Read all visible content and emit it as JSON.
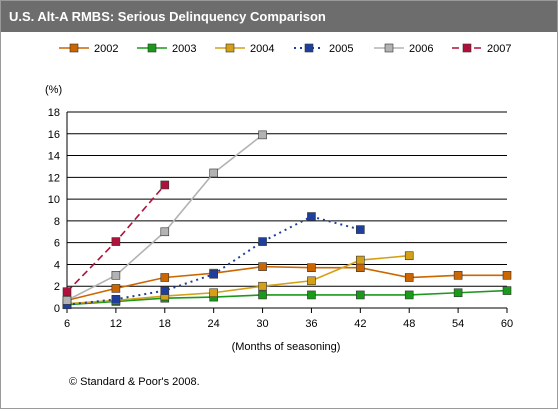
{
  "title": "U.S. Alt-A RMBS: Serious Delinquency Comparison",
  "footer": "© Standard & Poor's 2008.",
  "chart_data": {
    "type": "line",
    "ylabel": "(%)",
    "xlabel": "(Months of seasoning)",
    "x": [
      6,
      12,
      18,
      24,
      30,
      36,
      42,
      48,
      54,
      60
    ],
    "xlim": [
      6,
      60
    ],
    "ylim": [
      0,
      18
    ],
    "yticks": [
      0,
      2,
      4,
      6,
      8,
      10,
      12,
      14,
      16,
      18
    ],
    "grid": "horizontal",
    "legend": "top",
    "series": [
      {
        "name": "2002",
        "color": "#cc6600",
        "dash": "solid",
        "values": [
          0.7,
          1.8,
          2.8,
          3.2,
          3.8,
          3.7,
          3.7,
          2.8,
          3.0,
          3.0
        ]
      },
      {
        "name": "2003",
        "color": "#1a9a1a",
        "dash": "solid",
        "values": [
          0.3,
          0.6,
          0.9,
          1.0,
          1.2,
          1.2,
          1.2,
          1.2,
          1.4,
          1.6
        ]
      },
      {
        "name": "2004",
        "color": "#d4a017",
        "dash": "solid",
        "values": [
          0.4,
          0.7,
          1.1,
          1.4,
          2.0,
          2.5,
          4.4,
          4.8,
          null,
          null
        ]
      },
      {
        "name": "2005",
        "color": "#1f3f9f",
        "dash": "dotted",
        "values": [
          0.3,
          0.8,
          1.6,
          3.1,
          6.1,
          8.4,
          7.2,
          null,
          null,
          null
        ]
      },
      {
        "name": "2006",
        "color": "#b3b3b3",
        "dash": "solid",
        "values": [
          0.7,
          3.0,
          7.0,
          12.4,
          15.9,
          null,
          null,
          null,
          null,
          null
        ]
      },
      {
        "name": "2007",
        "color": "#b0113a",
        "dash": "dashed",
        "values": [
          1.5,
          6.1,
          11.3,
          null,
          null,
          null,
          null,
          null,
          null,
          null
        ]
      }
    ]
  }
}
